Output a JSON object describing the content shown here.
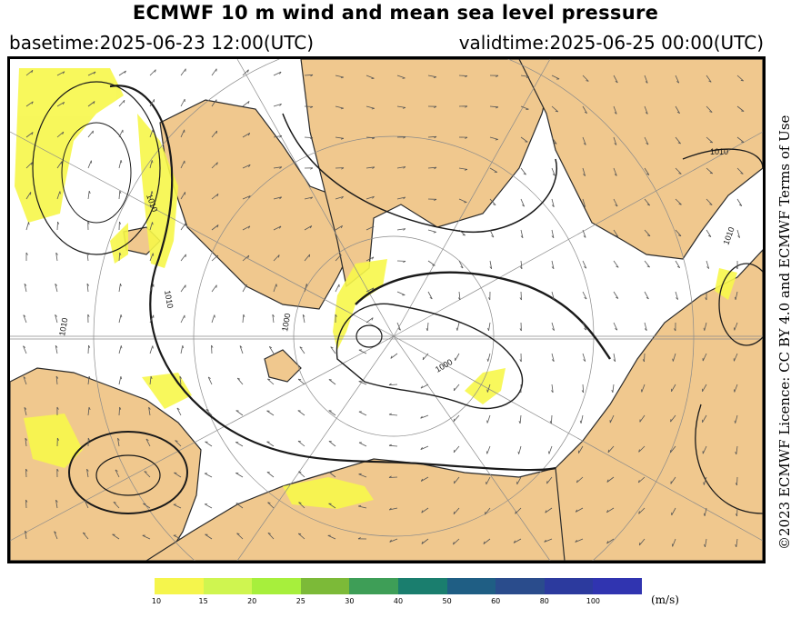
{
  "header": {
    "title": "ECMWF 10 m wind and mean sea level pressure",
    "basetime": "basetime:2025-06-23 12:00(UTC)",
    "validtime": "validtime:2025-06-25 00:00(UTC)"
  },
  "map": {
    "projection": "polar-stereographic (Arctic)",
    "land_color": "#f0c88e",
    "sea_color": "#ffffff",
    "wind_shading_color": "#f7f74a",
    "isobar_labels": [
      "1010",
      "1010",
      "1000",
      "1000",
      "1010",
      "1010",
      "1010"
    ]
  },
  "colorbar": {
    "ticks": [
      "10",
      "15",
      "20",
      "25",
      "30",
      "40",
      "50",
      "60",
      "80",
      "100"
    ],
    "unit": "(m/s)",
    "colors": [
      "#f5f54c",
      "#cff550",
      "#a7ef3c",
      "#7cba38",
      "#3e9e57",
      "#1a7e6e",
      "#1f5e84",
      "#2a4c8c",
      "#2c3a9e",
      "#3034b0"
    ]
  },
  "license": "©2023 ECMWF Licence: CC BY 4.0 and ECMWF Terms of Use"
}
